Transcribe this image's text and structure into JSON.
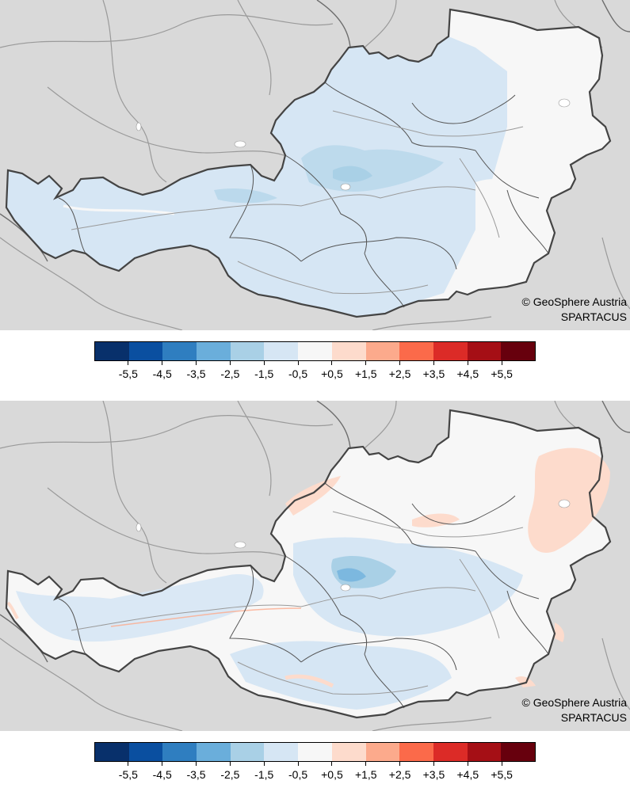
{
  "maps": [
    {
      "id": "top",
      "credit_line1": "© GeoSphere Austria",
      "credit_line2": "SPARTACUS",
      "dominant_anomaly_class": "-1,5 to -0,5",
      "local_anomaly_classes": [
        "-2,5 to -1,5"
      ]
    },
    {
      "id": "bottom",
      "credit_line1": "© GeoSphere Austria",
      "credit_line2": "SPARTACUS",
      "dominant_anomaly_class": "-0,5 to +0,5",
      "local_anomaly_classes": [
        "-2,5 to -1,5",
        "-1,5 to -0,5",
        "+0,5 to +1,5"
      ]
    }
  ],
  "legend": {
    "tick_labels": [
      "-5,5",
      "-4,5",
      "-3,5",
      "-2,5",
      "-1,5",
      "-0,5",
      "+0,5",
      "+1,5",
      "+2,5",
      "+3,5",
      "+4,5",
      "+5,5"
    ],
    "colors": [
      "#08306b",
      "#0a4fa0",
      "#2f7ec0",
      "#6aaedb",
      "#a9d0e6",
      "#d6e6f4",
      "#f7f7f7",
      "#fddbcc",
      "#fcaa8c",
      "#fb6a4a",
      "#dc2b27",
      "#a50f15",
      "#67000d"
    ]
  },
  "colors": {
    "background_land": "#d9d9d9",
    "outside_border": "#6e6e6e",
    "state_border": "#555555",
    "river": "#9a9a9a",
    "lake": "#ffffff"
  }
}
